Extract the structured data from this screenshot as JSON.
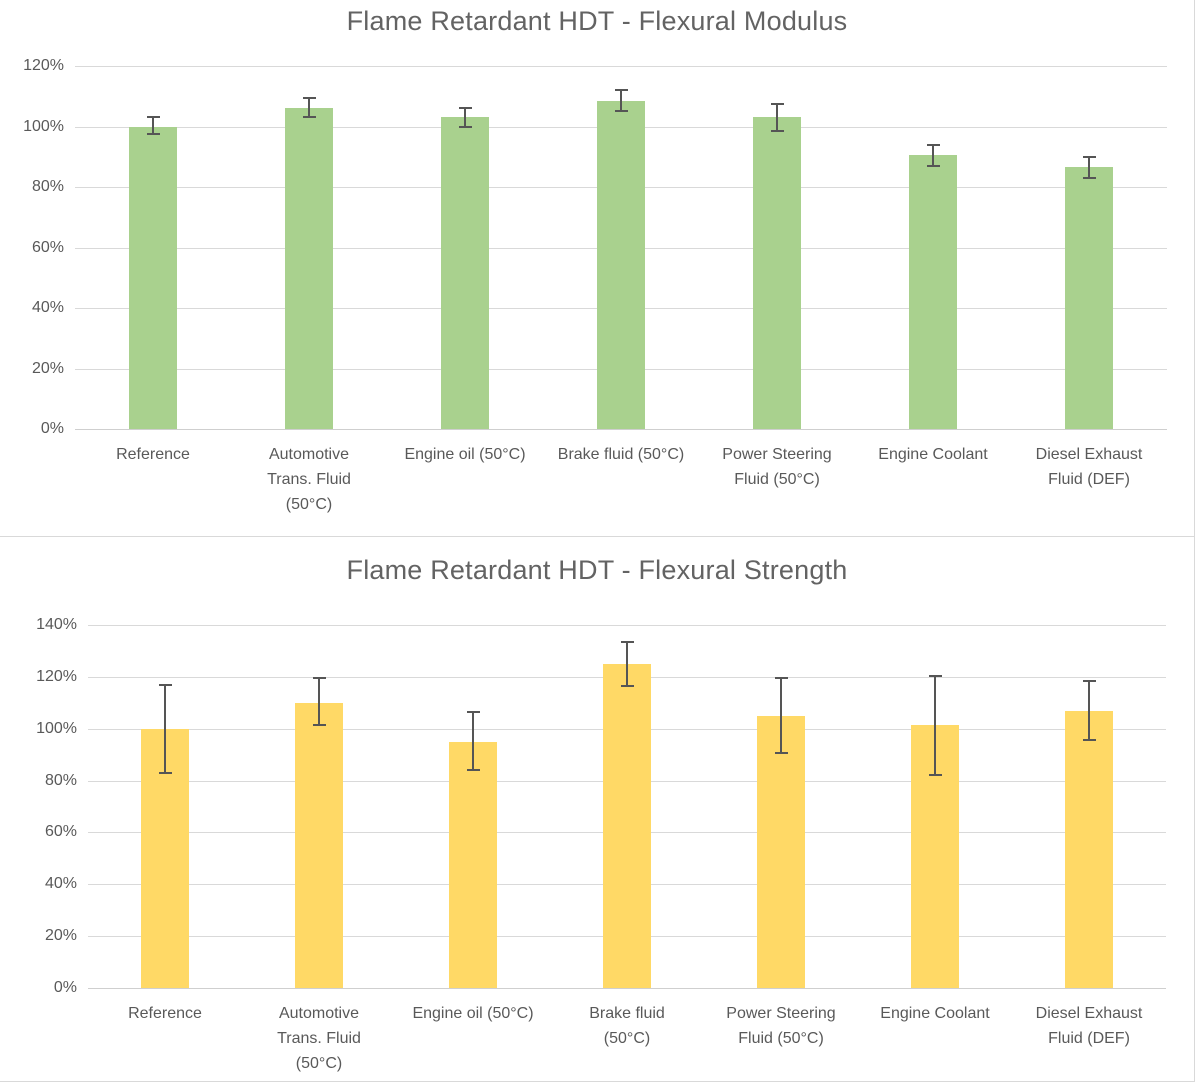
{
  "chart_data": [
    {
      "type": "bar",
      "title": "Flame Retardant HDT - Flexural Modulus",
      "categories": [
        "Reference",
        "Automotive Trans. Fluid (50°C)",
        "Engine oil (50°C)",
        "Brake fluid (50°C)",
        "Power Steering Fluid (50°C)",
        "Engine Coolant",
        "Diesel Exhaust Fluid (DEF)"
      ],
      "category_label_lines": [
        [
          "Reference"
        ],
        [
          "Automotive",
          "Trans. Fluid",
          "(50°C)"
        ],
        [
          "Engine oil (50°C)"
        ],
        [
          "Brake fluid (50°C)"
        ],
        [
          "Power Steering",
          "Fluid (50°C)"
        ],
        [
          "Engine Coolant"
        ],
        [
          "Diesel Exhaust",
          "Fluid (DEF)"
        ]
      ],
      "values": [
        100,
        106,
        103,
        108.5,
        103,
        90.5,
        86.5
      ],
      "error_plus": [
        3,
        3.5,
        3,
        3.5,
        4.5,
        3.5,
        3.5
      ],
      "error_minus": [
        2.5,
        3,
        3,
        3.5,
        4.5,
        3.5,
        3.5
      ],
      "unit": "%",
      "bar_color": "#A9D18E",
      "error_color": "#555555",
      "ylim": [
        0,
        120
      ],
      "ytick_step": 20,
      "ytick_labels": [
        "0%",
        "20%",
        "40%",
        "60%",
        "80%",
        "100%",
        "120%"
      ],
      "xlabel": "",
      "ylabel": "",
      "grid": true,
      "legend": "none"
    },
    {
      "type": "bar",
      "title": "Flame Retardant HDT - Flexural Strength",
      "categories": [
        "Reference",
        "Automotive Trans. Fluid (50°C)",
        "Engine oil (50°C)",
        "Brake fluid (50°C)",
        "Power Steering Fluid (50°C)",
        "Engine Coolant",
        "Diesel Exhaust Fluid (DEF)"
      ],
      "category_label_lines": [
        [
          "Reference"
        ],
        [
          "Automotive",
          "Trans. Fluid",
          "(50°C)"
        ],
        [
          "Engine oil (50°C)"
        ],
        [
          "Brake fluid",
          "(50°C)"
        ],
        [
          "Power Steering",
          "Fluid (50°C)"
        ],
        [
          "Engine Coolant"
        ],
        [
          "Diesel Exhaust",
          "Fluid (DEF)"
        ]
      ],
      "values": [
        100,
        110,
        95,
        125,
        105,
        101.5,
        107
      ],
      "error_plus": [
        17,
        9.5,
        11.5,
        8.5,
        14.5,
        19,
        11.5
      ],
      "error_minus": [
        17,
        8.5,
        11,
        8.5,
        14.5,
        19.5,
        11.5
      ],
      "unit": "%",
      "bar_color": "#FFD966",
      "error_color": "#555555",
      "ylim": [
        0,
        140
      ],
      "ytick_step": 20,
      "ytick_labels": [
        "0%",
        "20%",
        "40%",
        "60%",
        "80%",
        "100%",
        "120%",
        "140%"
      ],
      "xlabel": "",
      "ylabel": "",
      "grid": true,
      "legend": "none"
    }
  ],
  "colors": {
    "modulus_bar": "#A9D18E",
    "strength_bar": "#FFD966",
    "gridline": "#D9D9D9",
    "axis_text": "#595959",
    "title_text": "#636363",
    "error_bar": "#555555"
  }
}
